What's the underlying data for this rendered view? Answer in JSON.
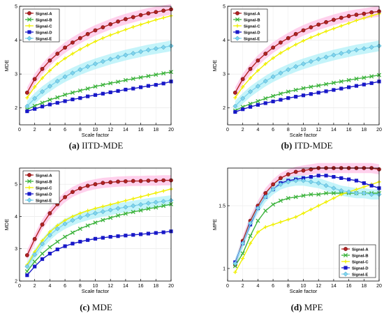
{
  "colors": {
    "Signal-A": "#b22222",
    "Signal-B": "#3cb33c",
    "Signal-C": "#f0f000",
    "Signal-D": "#1818c8",
    "Signal-E": "#7fd4ee",
    "band": "#ffc0e6",
    "bandE": "#b0f0f8"
  },
  "chart_data": [
    {
      "type": "line",
      "title": "",
      "caption": {
        "letter": "(a)",
        "text": "IITD-MDE"
      },
      "xlabel": "Scale factor",
      "ylabel": "MDE",
      "xlim": [
        0,
        20
      ],
      "ylim": [
        1.5,
        5
      ],
      "xticks": [
        0,
        2,
        4,
        6,
        8,
        10,
        12,
        14,
        16,
        18,
        20
      ],
      "yticks": [
        2,
        3,
        4,
        5
      ],
      "legend": "top-left",
      "x": [
        1,
        2,
        3,
        4,
        5,
        6,
        7,
        8,
        9,
        10,
        11,
        12,
        13,
        14,
        15,
        16,
        17,
        18,
        19,
        20
      ],
      "series": [
        {
          "name": "Signal-A",
          "marker": "circle",
          "values": [
            2.45,
            2.85,
            3.15,
            3.4,
            3.6,
            3.78,
            3.93,
            4.06,
            4.18,
            4.29,
            4.38,
            4.47,
            4.55,
            4.62,
            4.68,
            4.74,
            4.79,
            4.83,
            4.87,
            4.91
          ]
        },
        {
          "name": "Signal-B",
          "marker": "x",
          "values": [
            1.95,
            2.06,
            2.15,
            2.24,
            2.31,
            2.39,
            2.45,
            2.51,
            2.57,
            2.63,
            2.68,
            2.73,
            2.77,
            2.82,
            2.86,
            2.9,
            2.94,
            2.98,
            3.02,
            3.06
          ]
        },
        {
          "name": "Signal-C",
          "marker": "plus",
          "values": [
            2.3,
            2.62,
            2.88,
            3.1,
            3.3,
            3.46,
            3.6,
            3.73,
            3.85,
            3.96,
            4.06,
            4.15,
            4.23,
            4.31,
            4.39,
            4.46,
            4.53,
            4.6,
            4.66,
            4.72
          ]
        },
        {
          "name": "Signal-D",
          "marker": "square",
          "values": [
            1.9,
            1.97,
            2.04,
            2.1,
            2.15,
            2.2,
            2.25,
            2.29,
            2.34,
            2.38,
            2.42,
            2.46,
            2.5,
            2.54,
            2.57,
            2.61,
            2.65,
            2.68,
            2.72,
            2.78
          ]
        },
        {
          "name": "Signal-E",
          "marker": "diamond",
          "values": [
            2.05,
            2.28,
            2.48,
            2.64,
            2.79,
            2.92,
            3.03,
            3.13,
            3.22,
            3.3,
            3.37,
            3.44,
            3.5,
            3.56,
            3.61,
            3.66,
            3.71,
            3.75,
            3.79,
            3.83
          ]
        }
      ]
    },
    {
      "type": "line",
      "title": "",
      "caption": {
        "letter": "(b)",
        "text": "ITD-MDE"
      },
      "xlabel": "Scale factor",
      "ylabel": "MDE",
      "xlim": [
        0,
        20
      ],
      "ylim": [
        1.5,
        5
      ],
      "xticks": [
        0,
        2,
        4,
        6,
        8,
        10,
        12,
        14,
        16,
        18,
        20
      ],
      "yticks": [
        2,
        3,
        4,
        5
      ],
      "legend": "top-left",
      "x": [
        1,
        2,
        3,
        4,
        5,
        6,
        7,
        8,
        9,
        10,
        11,
        12,
        13,
        14,
        15,
        16,
        17,
        18,
        19,
        20
      ],
      "series": [
        {
          "name": "Signal-A",
          "marker": "circle",
          "values": [
            2.45,
            2.85,
            3.15,
            3.4,
            3.6,
            3.78,
            3.93,
            4.06,
            4.18,
            4.29,
            4.38,
            4.46,
            4.53,
            4.6,
            4.66,
            4.71,
            4.75,
            4.78,
            4.82,
            4.85
          ]
        },
        {
          "name": "Signal-B",
          "marker": "x",
          "values": [
            1.92,
            2.03,
            2.12,
            2.2,
            2.28,
            2.35,
            2.42,
            2.48,
            2.53,
            2.58,
            2.62,
            2.66,
            2.7,
            2.74,
            2.78,
            2.82,
            2.86,
            2.89,
            2.93,
            2.97
          ]
        },
        {
          "name": "Signal-C",
          "marker": "plus",
          "values": [
            2.3,
            2.62,
            2.88,
            3.1,
            3.3,
            3.47,
            3.62,
            3.75,
            3.87,
            3.98,
            4.08,
            4.17,
            4.26,
            4.34,
            4.42,
            4.5,
            4.58,
            4.65,
            4.72,
            4.78
          ]
        },
        {
          "name": "Signal-D",
          "marker": "square",
          "values": [
            1.88,
            1.96,
            2.03,
            2.09,
            2.14,
            2.19,
            2.24,
            2.29,
            2.33,
            2.37,
            2.41,
            2.45,
            2.49,
            2.53,
            2.57,
            2.61,
            2.65,
            2.69,
            2.73,
            2.78
          ]
        },
        {
          "name": "Signal-E",
          "marker": "diamond",
          "values": [
            2.05,
            2.28,
            2.48,
            2.64,
            2.79,
            2.92,
            3.03,
            3.13,
            3.22,
            3.3,
            3.37,
            3.44,
            3.5,
            3.56,
            3.61,
            3.66,
            3.71,
            3.75,
            3.79,
            3.83
          ]
        }
      ]
    },
    {
      "type": "line",
      "title": "",
      "caption": {
        "letter": "(c)",
        "text": "MDE"
      },
      "xlabel": "Scale factor",
      "ylabel": "MDE",
      "xlim": [
        0,
        20
      ],
      "ylim": [
        2,
        5.5
      ],
      "xticks": [
        0,
        2,
        4,
        6,
        8,
        10,
        12,
        14,
        16,
        18,
        20
      ],
      "yticks": [
        2,
        3,
        4,
        5
      ],
      "legend": "top-left",
      "x": [
        1,
        2,
        3,
        4,
        5,
        6,
        7,
        8,
        9,
        10,
        11,
        12,
        13,
        14,
        15,
        16,
        17,
        18,
        19,
        20
      ],
      "series": [
        {
          "name": "Signal-A",
          "marker": "circle",
          "values": [
            2.8,
            3.3,
            3.75,
            4.1,
            4.38,
            4.6,
            4.76,
            4.87,
            4.95,
            5.0,
            5.04,
            5.06,
            5.08,
            5.09,
            5.1,
            5.1,
            5.11,
            5.11,
            5.12,
            5.12
          ]
        },
        {
          "name": "Signal-B",
          "marker": "x",
          "values": [
            2.3,
            2.6,
            2.85,
            3.05,
            3.22,
            3.37,
            3.5,
            3.62,
            3.72,
            3.81,
            3.89,
            3.96,
            4.03,
            4.09,
            4.14,
            4.19,
            4.24,
            4.28,
            4.33,
            4.38
          ]
        },
        {
          "name": "Signal-C",
          "marker": "plus",
          "values": [
            2.5,
            2.9,
            3.25,
            3.52,
            3.72,
            3.88,
            4.0,
            4.1,
            4.18,
            4.25,
            4.31,
            4.37,
            4.43,
            4.49,
            4.55,
            4.61,
            4.67,
            4.73,
            4.79,
            4.85
          ]
        },
        {
          "name": "Signal-D",
          "marker": "square",
          "values": [
            2.18,
            2.45,
            2.68,
            2.85,
            2.98,
            3.08,
            3.16,
            3.22,
            3.27,
            3.31,
            3.34,
            3.37,
            3.39,
            3.41,
            3.43,
            3.45,
            3.47,
            3.49,
            3.51,
            3.54
          ]
        },
        {
          "name": "Signal-E",
          "marker": "diamond",
          "values": [
            2.45,
            2.82,
            3.15,
            3.42,
            3.62,
            3.77,
            3.88,
            3.97,
            4.04,
            4.1,
            4.15,
            4.2,
            4.25,
            4.29,
            4.33,
            4.37,
            4.41,
            4.44,
            4.47,
            4.5
          ]
        }
      ]
    },
    {
      "type": "line",
      "title": "",
      "caption": {
        "letter": "(d)",
        "text": "MPE"
      },
      "xlabel": "Scale factor",
      "ylabel": "MPE",
      "xlim": [
        0,
        20
      ],
      "ylim": [
        0.9,
        1.8
      ],
      "xticks": [
        0,
        2,
        4,
        6,
        8,
        10,
        12,
        14,
        16,
        18,
        20
      ],
      "yticks": [
        1,
        1.5
      ],
      "legend": "bottom-right",
      "x": [
        1,
        2,
        3,
        4,
        5,
        6,
        7,
        8,
        9,
        10,
        11,
        12,
        13,
        14,
        15,
        16,
        17,
        18,
        19,
        20
      ],
      "series": [
        {
          "name": "Signal-A",
          "marker": "circle",
          "values": [
            1.03,
            1.22,
            1.38,
            1.5,
            1.6,
            1.67,
            1.72,
            1.75,
            1.77,
            1.78,
            1.79,
            1.8,
            1.8,
            1.8,
            1.8,
            1.8,
            1.8,
            1.8,
            1.8,
            1.79
          ]
        },
        {
          "name": "Signal-B",
          "marker": "x",
          "values": [
            1.02,
            1.12,
            1.26,
            1.38,
            1.46,
            1.51,
            1.54,
            1.56,
            1.57,
            1.58,
            1.59,
            1.59,
            1.6,
            1.6,
            1.6,
            1.6,
            1.6,
            1.6,
            1.6,
            1.6
          ]
        },
        {
          "name": "Signal-C",
          "marker": "plus",
          "values": [
            0.97,
            1.08,
            1.2,
            1.29,
            1.33,
            1.35,
            1.37,
            1.39,
            1.41,
            1.44,
            1.47,
            1.5,
            1.53,
            1.56,
            1.59,
            1.61,
            1.63,
            1.65,
            1.67,
            1.69
          ]
        },
        {
          "name": "Signal-D",
          "marker": "square",
          "values": [
            1.05,
            1.2,
            1.35,
            1.48,
            1.57,
            1.63,
            1.68,
            1.7,
            1.71,
            1.72,
            1.73,
            1.74,
            1.74,
            1.73,
            1.72,
            1.71,
            1.7,
            1.68,
            1.66,
            1.64
          ]
        },
        {
          "name": "Signal-E",
          "marker": "diamond",
          "values": [
            1.04,
            1.2,
            1.36,
            1.48,
            1.57,
            1.63,
            1.67,
            1.69,
            1.7,
            1.7,
            1.69,
            1.68,
            1.66,
            1.64,
            1.62,
            1.61,
            1.6,
            1.6,
            1.59,
            1.59
          ]
        }
      ]
    }
  ]
}
